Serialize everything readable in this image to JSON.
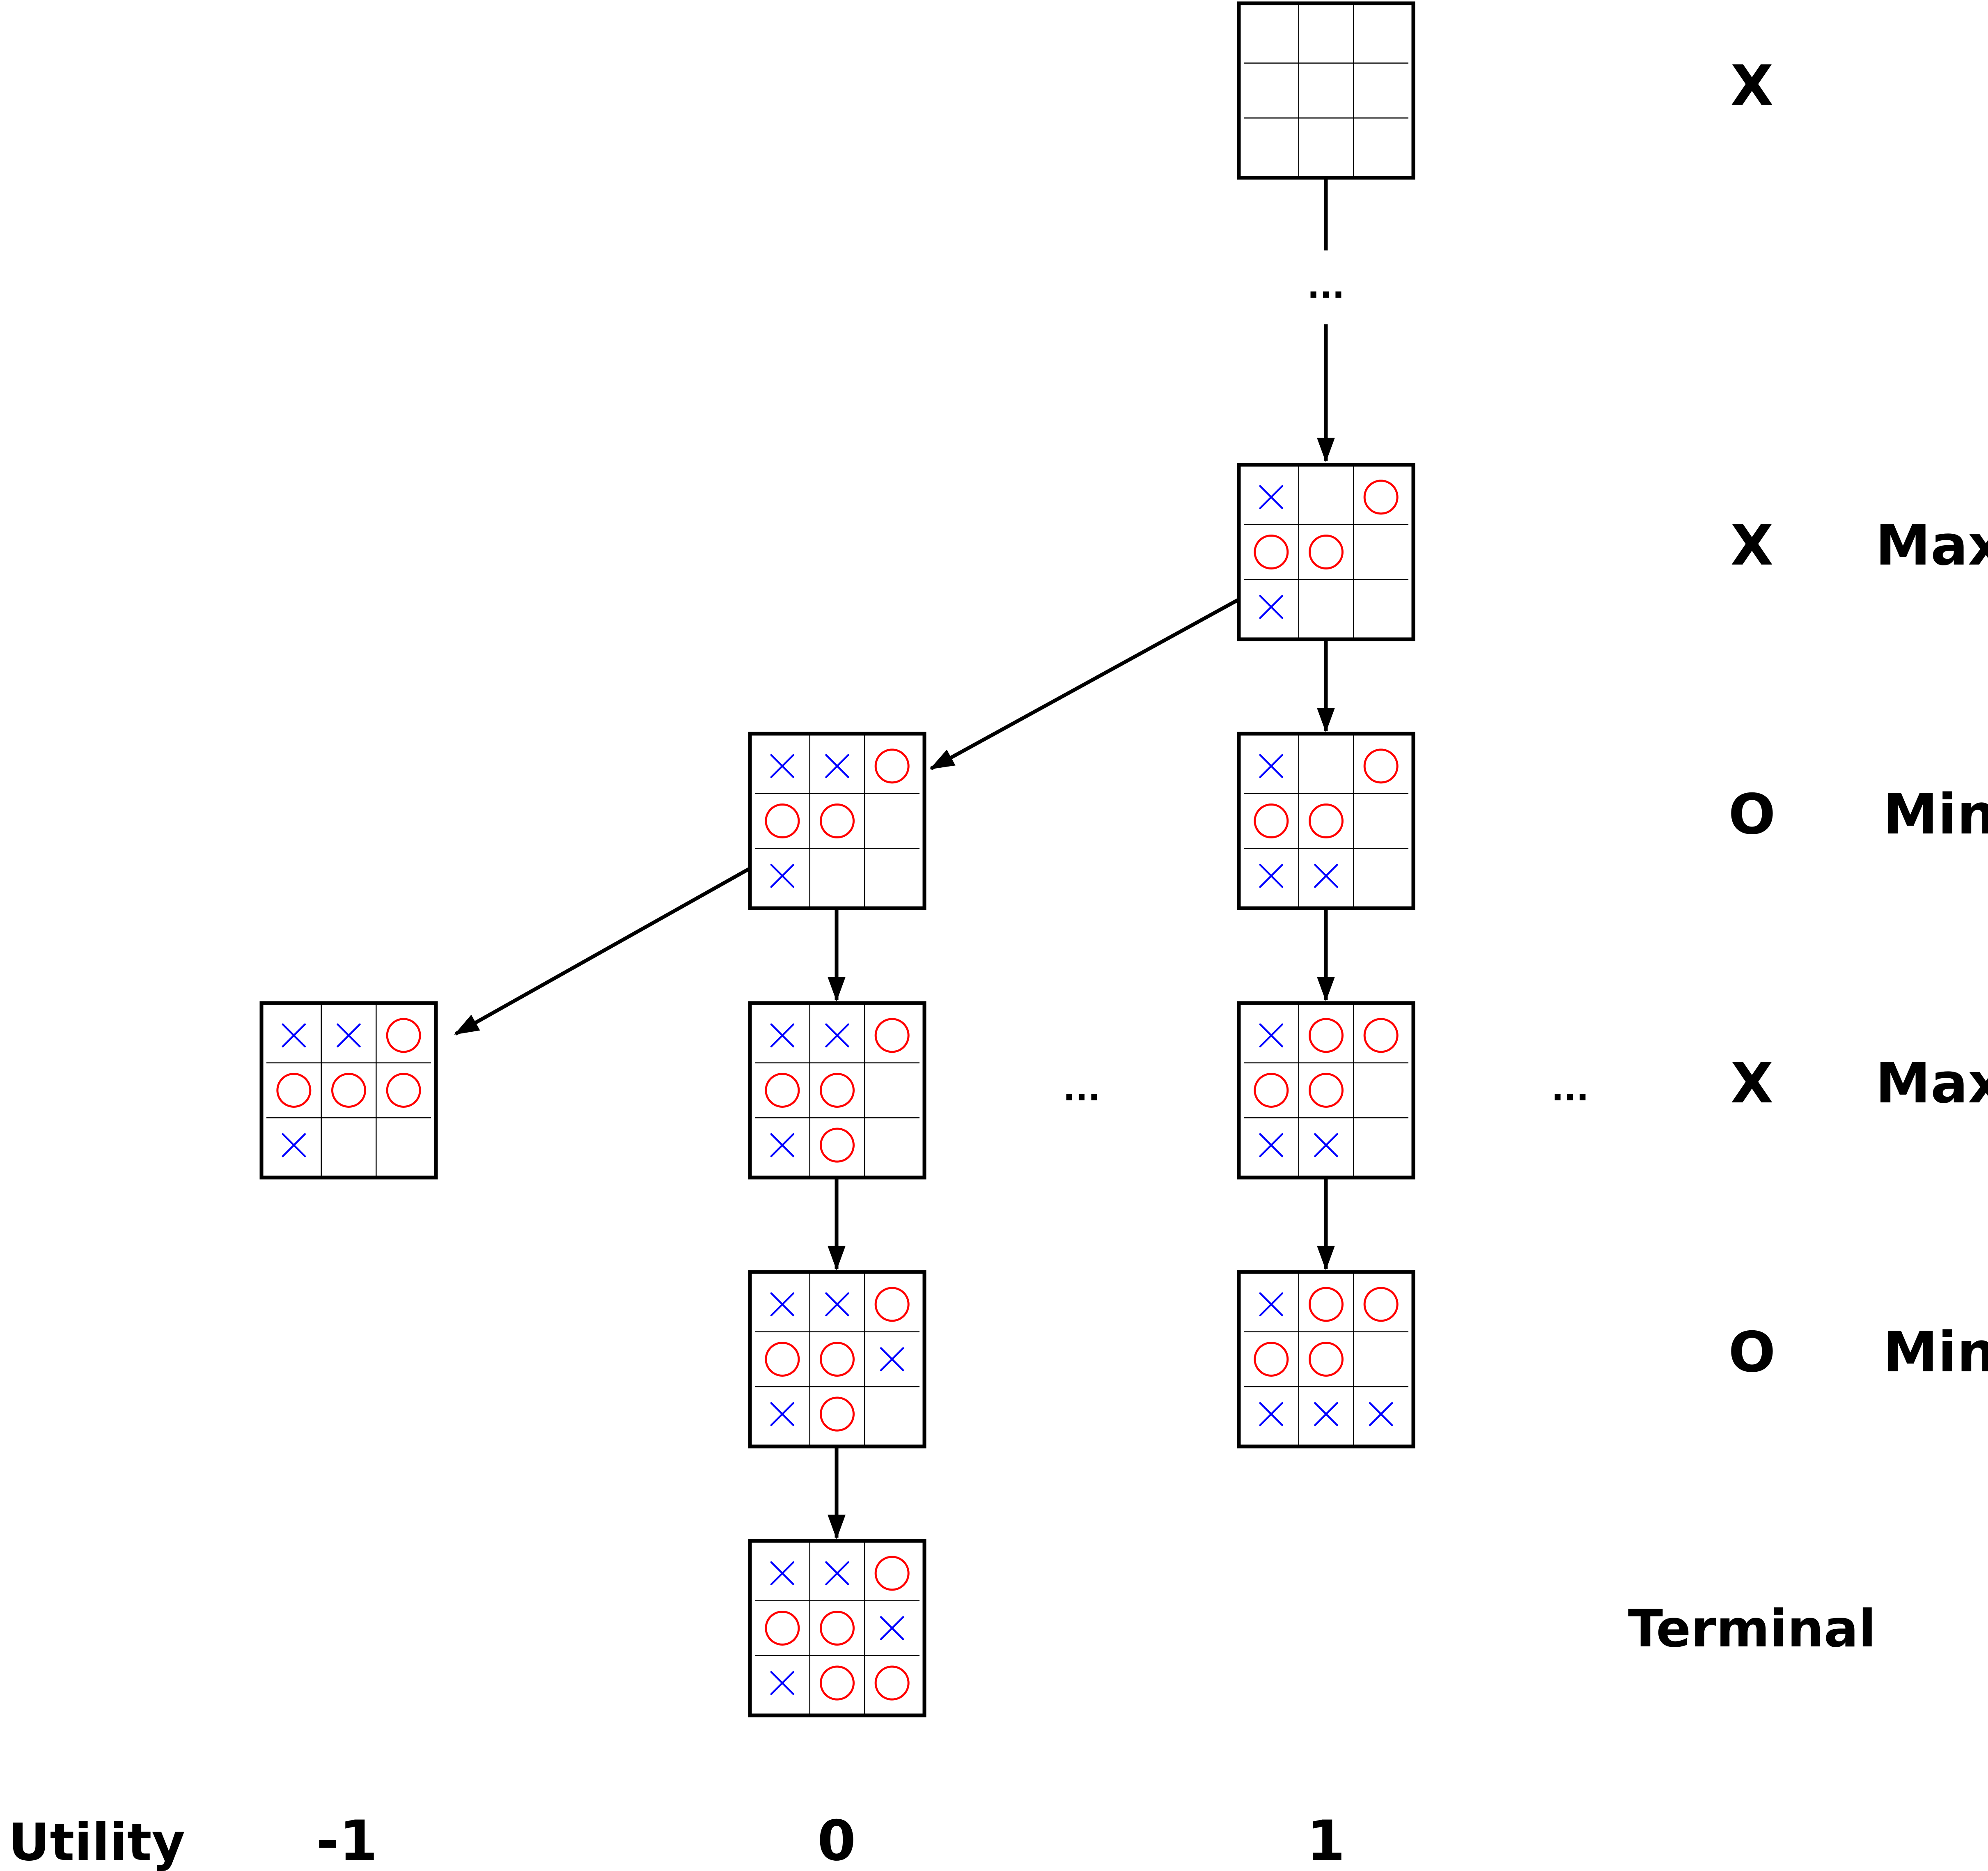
{
  "boards": [
    {
      "id": "root",
      "cells": [
        "",
        "",
        "",
        "",
        "",
        "",
        "",
        "",
        ""
      ]
    },
    {
      "id": "state-a",
      "cells": [
        "X",
        "",
        "O",
        "O",
        "O",
        "",
        "X",
        "",
        ""
      ]
    },
    {
      "id": "state-b1",
      "cells": [
        "X",
        "X",
        "O",
        "O",
        "O",
        "",
        "X",
        "",
        ""
      ]
    },
    {
      "id": "state-b2",
      "cells": [
        "X",
        "",
        "O",
        "O",
        "O",
        "",
        "X",
        "X",
        ""
      ]
    },
    {
      "id": "state-c1",
      "cells": [
        "X",
        "X",
        "O",
        "O",
        "O",
        "O",
        "X",
        "",
        ""
      ]
    },
    {
      "id": "state-c2",
      "cells": [
        "X",
        "X",
        "O",
        "O",
        "O",
        "",
        "X",
        "O",
        ""
      ]
    },
    {
      "id": "state-c3",
      "cells": [
        "X",
        "O",
        "O",
        "O",
        "O",
        "",
        "X",
        "X",
        ""
      ]
    },
    {
      "id": "state-d1",
      "cells": [
        "X",
        "X",
        "O",
        "O",
        "O",
        "X",
        "X",
        "O",
        ""
      ]
    },
    {
      "id": "state-d2",
      "cells": [
        "X",
        "O",
        "O",
        "O",
        "O",
        "",
        "X",
        "X",
        "X"
      ]
    },
    {
      "id": "state-e1",
      "cells": [
        "X",
        "X",
        "O",
        "O",
        "O",
        "X",
        "X",
        "O",
        "O"
      ]
    }
  ],
  "edges": [
    {
      "from": "state-a",
      "to": "state-b1"
    },
    {
      "from": "state-a",
      "to": "state-b2"
    },
    {
      "from": "state-b1",
      "to": "state-c1"
    },
    {
      "from": "state-b1",
      "to": "state-c2"
    },
    {
      "from": "state-b2",
      "to": "state-c3"
    },
    {
      "from": "state-c2",
      "to": "state-d1"
    },
    {
      "from": "state-c3",
      "to": "state-d2"
    },
    {
      "from": "state-d1",
      "to": "state-e1"
    }
  ],
  "ellipsis": "...",
  "levels": [
    {
      "player": "X",
      "role": ""
    },
    {
      "player": "X",
      "role": "Max"
    },
    {
      "player": "O",
      "role": "Min"
    },
    {
      "player": "X",
      "role": "Max"
    },
    {
      "player": "O",
      "role": "Min"
    },
    {
      "player": "Terminal",
      "role": ""
    }
  ],
  "utility": {
    "label": "Utility",
    "values": [
      "-1",
      "0",
      "1"
    ]
  },
  "colors": {
    "x_mark": "#0000ff",
    "o_mark": "#ff0000",
    "frame": "#000000"
  }
}
